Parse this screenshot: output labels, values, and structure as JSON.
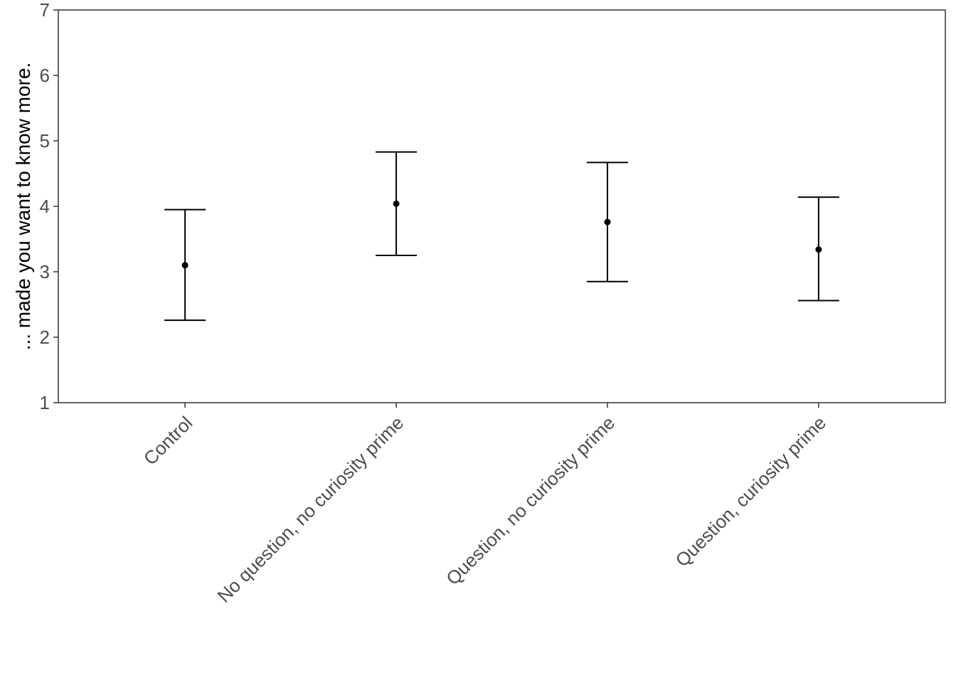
{
  "chart_data": {
    "type": "errorbar",
    "title": "",
    "xlabel": "",
    "ylabel": "... made you want to know more.",
    "ylim": [
      1,
      7
    ],
    "yticks": [
      1,
      2,
      3,
      4,
      5,
      6,
      7
    ],
    "grid": false,
    "categories": [
      "Control",
      "No question, no curiosity prime",
      "Question, no curiosity prime",
      "Question, curiosity prime"
    ],
    "series": [
      {
        "values": [
          3.1,
          4.04,
          3.76,
          3.34
        ],
        "lower": [
          2.26,
          3.25,
          2.85,
          2.56
        ],
        "upper": [
          3.95,
          4.83,
          4.67,
          4.14
        ]
      }
    ]
  }
}
